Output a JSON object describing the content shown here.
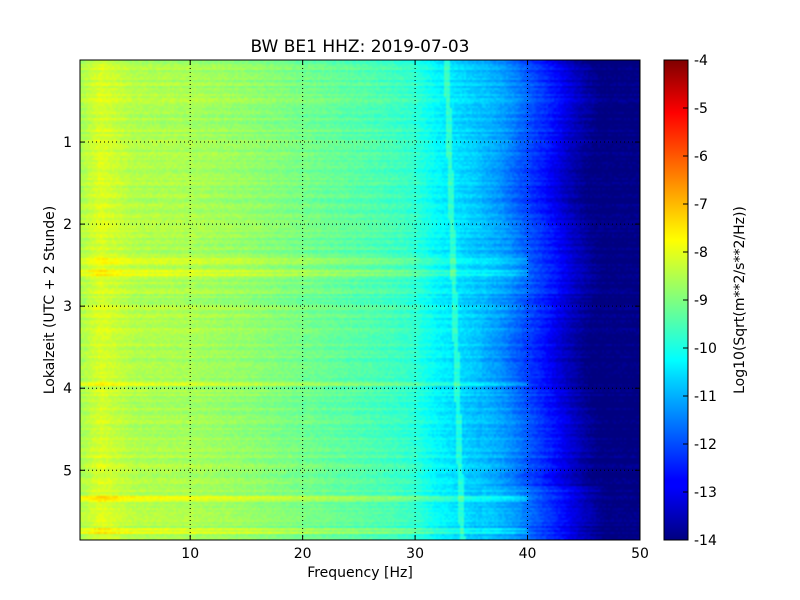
{
  "chart_data": {
    "type": "heatmap",
    "title": "BW BE1 HHZ: 2019-07-03",
    "xlabel": "Frequency [Hz]",
    "ylabel": "Lokalzeit (UTC + 2 Stunde)",
    "xlim": [
      0.2,
      50
    ],
    "ylim": [
      0,
      5.85
    ],
    "y_inverted": true,
    "x_ticks": [
      "10",
      "20",
      "30",
      "40",
      "50"
    ],
    "x_tick_values": [
      10,
      20,
      30,
      40,
      50
    ],
    "y_ticks": [
      "1",
      "2",
      "3",
      "4",
      "5"
    ],
    "y_tick_values": [
      1,
      2,
      3,
      4,
      5
    ],
    "grid": true,
    "colormap": "jet",
    "colorbar": {
      "label": "Log10(Sqrt(m**2/s**2/Hz))",
      "range": [
        -14,
        -4
      ],
      "ticks": [
        "-4",
        "-5",
        "-6",
        "-7",
        "-8",
        "-9",
        "-10",
        "-11",
        "-12",
        "-13",
        "-14"
      ],
      "tick_values": [
        -4,
        -5,
        -6,
        -7,
        -8,
        -9,
        -10,
        -11,
        -12,
        -13,
        -14
      ]
    },
    "spectrum_profile": {
      "frequency_hz": [
        0.2,
        2,
        5,
        10,
        15,
        20,
        25,
        28,
        30,
        32,
        34,
        36,
        38,
        40,
        42,
        44,
        46,
        50
      ],
      "log10_amplitude": [
        -8.6,
        -8.1,
        -8.5,
        -8.6,
        -8.8,
        -9.1,
        -9.4,
        -9.6,
        -9.8,
        -10.3,
        -10.6,
        -10.9,
        -11.3,
        -12.0,
        -12.6,
        -13.4,
        -14.0,
        -14.0
      ]
    },
    "annotated_features": [
      {
        "feature": "narrow spectral line",
        "frequency_hz_range": [
          32.8,
          34.2
        ]
      },
      {
        "feature": "horizontal noise band",
        "time_h": 2.45
      },
      {
        "feature": "horizontal noise band",
        "time_h": 2.6
      },
      {
        "feature": "horizontal noise band",
        "time_h": 3.95
      },
      {
        "feature": "horizontal noise band",
        "time_h": 5.35
      },
      {
        "feature": "horizontal noise band",
        "time_h": 5.75
      }
    ]
  }
}
